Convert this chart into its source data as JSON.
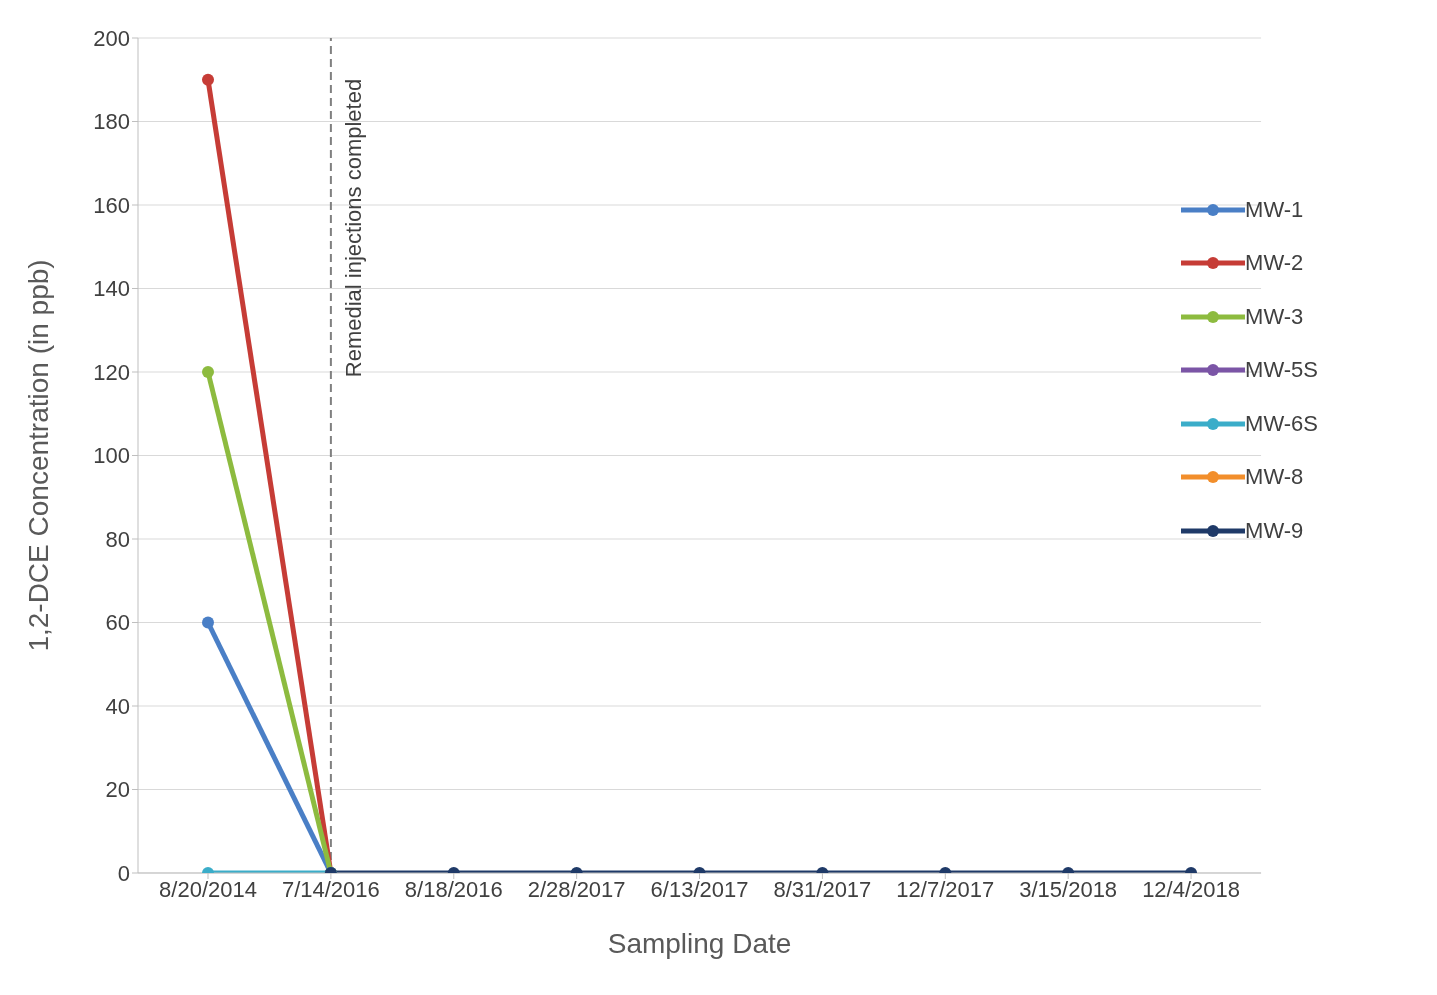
{
  "chart_data": {
    "type": "line",
    "xlabel": "Sampling Date",
    "ylabel": "1,2-DCE Concentration (in ppb)",
    "categories": [
      "8/20/2014",
      "7/14/2016",
      "8/18/2016",
      "2/28/2017",
      "6/13/2017",
      "8/31/2017",
      "12/7/2017",
      "3/15/2018",
      "12/4/2018"
    ],
    "series": [
      {
        "name": "MW-1",
        "color": "#4a7fc6",
        "values": [
          60,
          0,
          null,
          null,
          null,
          null,
          null,
          null,
          null
        ]
      },
      {
        "name": "MW-2",
        "color": "#c63c36",
        "values": [
          190,
          0,
          null,
          null,
          null,
          null,
          null,
          null,
          null
        ]
      },
      {
        "name": "MW-3",
        "color": "#8dbb3f",
        "values": [
          120,
          0,
          null,
          null,
          null,
          null,
          null,
          null,
          null
        ]
      },
      {
        "name": "MW-5S",
        "color": "#7b55a6",
        "values": [
          null,
          null,
          null,
          null,
          null,
          null,
          null,
          null,
          null
        ]
      },
      {
        "name": "MW-6S",
        "color": "#3badc9",
        "values": [
          0,
          0,
          null,
          null,
          null,
          null,
          null,
          null,
          null
        ]
      },
      {
        "name": "MW-8",
        "color": "#f28e2b",
        "values": [
          null,
          null,
          null,
          null,
          null,
          null,
          null,
          null,
          null
        ]
      },
      {
        "name": "MW-9",
        "color": "#1f3a68",
        "values": [
          null,
          0,
          0,
          0,
          0,
          0,
          0,
          0,
          0
        ]
      }
    ],
    "ylim": [
      0,
      200
    ],
    "yticks": [
      0,
      20,
      40,
      60,
      80,
      100,
      120,
      140,
      160,
      180,
      200
    ],
    "grid": "y",
    "legend": "top right",
    "marker": "circle",
    "line_style": "solid",
    "ref_lines": [
      {
        "axis": "x",
        "value": "7/14/2016",
        "label": "Remedial injections completed",
        "color": "#808080",
        "line_style": "dashed"
      }
    ]
  }
}
